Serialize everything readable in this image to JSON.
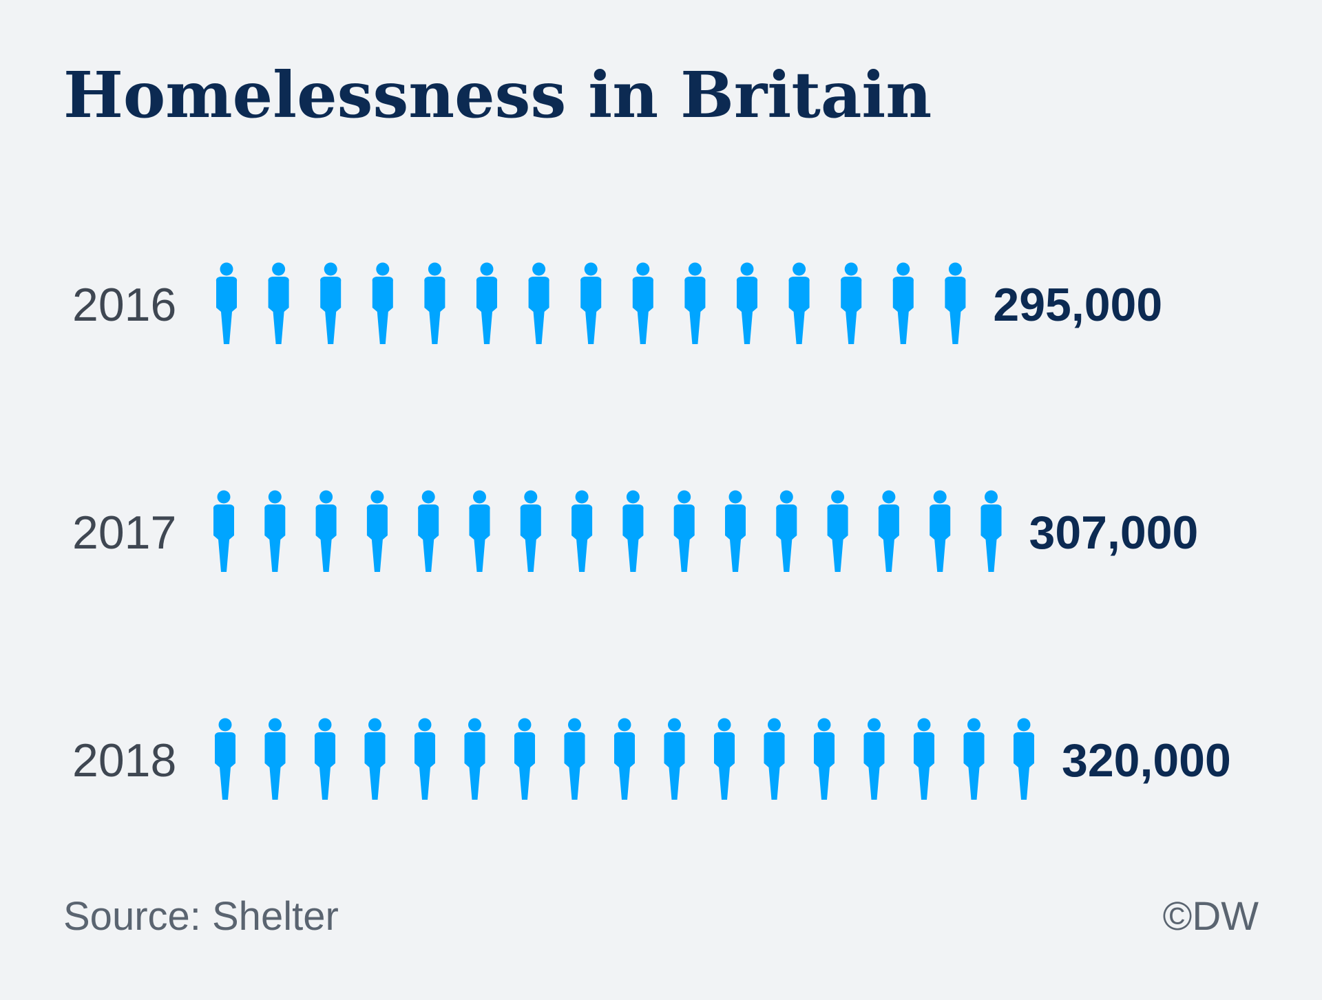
{
  "title": "Homelessness in Britain",
  "source": "Source: Shelter",
  "credit": "©DW",
  "colors": {
    "background": "#f1f3f5",
    "icon": "#00a5ff",
    "title": "#0c2a52",
    "value": "#0c2a52",
    "year": "#3f4752",
    "footer": "#5a6470"
  },
  "icon": "person-icon",
  "chart_data": {
    "type": "pictogram",
    "title": "Homelessness in Britain",
    "categories": [
      "2016",
      "2017",
      "2018"
    ],
    "values": [
      295000,
      307000,
      320000
    ],
    "value_labels": [
      "295,000",
      "307,000",
      "320,000"
    ],
    "icon_counts": [
      15,
      16,
      17
    ],
    "grid": false
  }
}
